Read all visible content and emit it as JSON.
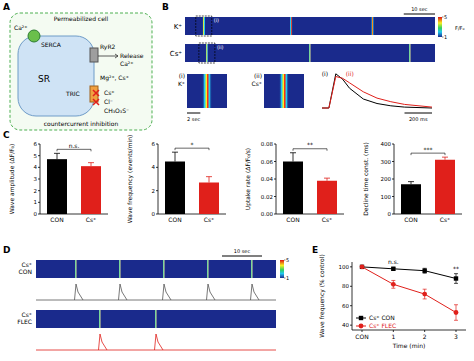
{
  "panel_labels": [
    "A",
    "B",
    "C",
    "D",
    "E"
  ],
  "diagram": {
    "cell": "Permeabilized cell",
    "sr": "SR",
    "serca": "SERCA",
    "ryr2": "RyR2",
    "tric": "TRIC",
    "release": "Release",
    "ca_cyto": "Ca²⁺",
    "ca_release": "Ca²⁺",
    "counterions": "Mg²⁺, Cs⁺",
    "cs": "Cs⁺",
    "cl": "Cl⁻",
    "ms": "CH₃O₃S⁻",
    "inhibition": "countercurrent inhibition"
  },
  "linescan_b": {
    "time_range": [
      0,
      80
    ],
    "rows": [
      {
        "name": "K⁺",
        "wave_times": [
          6,
          34,
          60
        ]
      },
      {
        "name": "Cs⁺",
        "wave_times": [
          7,
          40,
          72
        ]
      }
    ],
    "box_markers": [
      "(i)",
      "(ii)"
    ],
    "scale_bar": {
      "value": 10,
      "label": "10 sec"
    },
    "colorbar": {
      "range": [
        1,
        5
      ],
      "ticks": [
        5,
        1
      ],
      "label": "F/F₀"
    },
    "insets": [
      {
        "marker": "(i)",
        "name": "K⁺"
      },
      {
        "marker": "(ii)",
        "name": "Cs⁺"
      }
    ],
    "inset_scale_bar": {
      "value": 2,
      "label": "2 sec"
    },
    "overlay": {
      "xlim": [
        0,
        800
      ],
      "ylim": [
        1,
        5
      ],
      "x": [
        0,
        50,
        100,
        150,
        200,
        300,
        400,
        500,
        600,
        800
      ],
      "series": [
        {
          "name": "(i)",
          "color": "#000000",
          "values": [
            1,
            1,
            4.8,
            4.2,
            3.2,
            2,
            1.5,
            1.25,
            1.1,
            1
          ]
        },
        {
          "name": "(ii)",
          "color": "#e0201b",
          "values": [
            1,
            1,
            4.5,
            4.3,
            3.8,
            2.8,
            2.1,
            1.7,
            1.4,
            1.1
          ]
        }
      ],
      "scale_bar": {
        "value": 200,
        "label": "200 ms"
      }
    }
  },
  "chart_data": [
    {
      "type": "bar",
      "y_label": "Wave amplitude (ΔF/F₀)",
      "categories": [
        "CON",
        "Cs⁺"
      ],
      "values": [
        4.7,
        4.1
      ],
      "errors": [
        0.5,
        0.3
      ],
      "colors": [
        "#000000",
        "#e0201b"
      ],
      "ylim": [
        0,
        6
      ],
      "yticks": [
        0,
        1,
        2,
        3,
        4,
        5,
        6
      ],
      "annotation": "n.s."
    },
    {
      "type": "bar",
      "y_label": "Wave frequency (events/min)",
      "categories": [
        "CON",
        "Cs⁺"
      ],
      "values": [
        4.5,
        2.7
      ],
      "errors": [
        0.8,
        0.5
      ],
      "colors": [
        "#000000",
        "#e0201b"
      ],
      "ylim": [
        0,
        6
      ],
      "yticks": [
        0,
        2,
        4,
        6
      ],
      "annotation": "*"
    },
    {
      "type": "bar",
      "y_label": "Uptake rate (ΔF/F₀/s)",
      "categories": [
        "CON",
        "Cs⁺"
      ],
      "values": [
        0.06,
        0.038
      ],
      "errors": [
        0.01,
        0.003
      ],
      "colors": [
        "#000000",
        "#e0201b"
      ],
      "ylim": [
        0,
        0.08
      ],
      "yticks": [
        {
          "value": 0,
          "label": "0.00"
        },
        {
          "value": 0.02,
          "label": "0.02"
        },
        {
          "value": 0.04,
          "label": "0.04"
        },
        {
          "value": 0.06,
          "label": "0.06"
        },
        {
          "value": 0.08,
          "label": "0.08"
        }
      ],
      "annotation": "**"
    },
    {
      "type": "bar",
      "y_label": "Decline time const. (ms)",
      "categories": [
        "CON",
        "Cs⁺"
      ],
      "values": [
        170,
        310
      ],
      "errors": [
        15,
        15
      ],
      "colors": [
        "#000000",
        "#e0201b"
      ],
      "ylim": [
        0,
        400
      ],
      "yticks": [
        0,
        100,
        200,
        300,
        400
      ],
      "annotation": "***"
    },
    {
      "type": "line",
      "x_label": "Time (min)",
      "y_label": "Wave frequency (% control)",
      "categories": [
        "CON",
        "1",
        "2",
        "3"
      ],
      "ylim": [
        35,
        105
      ],
      "yticks": [
        40,
        60,
        80,
        100
      ],
      "legend": "bottom-left",
      "series": [
        {
          "name": "Cs⁺ CON",
          "color": "#000000",
          "marker": "square",
          "values": [
            100,
            98,
            96,
            88
          ],
          "errors": [
            0,
            1.5,
            2.5,
            5
          ]
        },
        {
          "name": "Cs⁺ FLEC",
          "color": "#e0201b",
          "marker": "circle",
          "values": [
            100,
            82,
            72,
            53
          ],
          "errors": [
            0,
            4,
            5,
            8
          ]
        }
      ],
      "annotations": [
        {
          "at": "1",
          "text": "n.s."
        },
        {
          "at": "3",
          "text": "**"
        }
      ]
    }
  ],
  "linescan_d": {
    "time_range": [
      0,
      60
    ],
    "rows": [
      {
        "label": [
          "Cs⁺",
          "CON"
        ],
        "trace_color": "#555555",
        "wave_times": [
          10,
          21,
          32,
          43,
          54
        ]
      },
      {
        "label": [
          "Cs⁺",
          "FLEC"
        ],
        "trace_color": "#e0201b",
        "wave_times": [
          16,
          30
        ]
      }
    ],
    "scale_bar": {
      "value": 10,
      "label": "10 sec"
    },
    "colorbar": {
      "range": [
        1,
        5
      ],
      "ticks": [
        5,
        1
      ]
    }
  }
}
